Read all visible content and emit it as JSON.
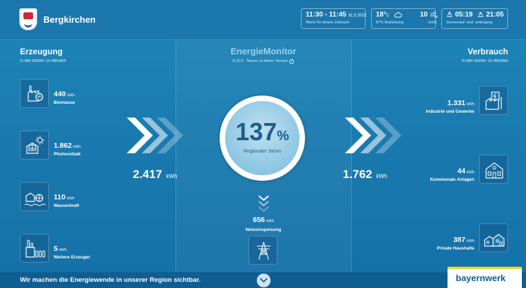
{
  "header": {
    "town": "Bergkirchen",
    "time_range": "11:30 - 11:45",
    "date": "31.5.2022",
    "time_note": "Werte für diesen Zeitraum",
    "temperature": "18°",
    "temp_unit": "C",
    "cloud_cover": "87% Bedeckung",
    "wind": "10",
    "wind_unit": "km/h",
    "sunrise": "05:19",
    "sunset": "21:05",
    "sun_note": "Sonnenauf- und -untergang"
  },
  "generation": {
    "title": "Erzeugung",
    "subtitle": "in den letzten 15 Minuten",
    "items": [
      {
        "value": "440",
        "unit": "kWh",
        "label": "Biomasse",
        "icon": "biomass-icon"
      },
      {
        "value": "1.862",
        "unit": "kWh",
        "label": "Photovoltaik",
        "icon": "solar-icon"
      },
      {
        "value": "110",
        "unit": "kWh",
        "label": "Wasserkraft",
        "icon": "hydro-icon"
      },
      {
        "value": "5",
        "unit": "kWh",
        "label": "Weitere Erzeuger",
        "icon": "factory-icon"
      }
    ],
    "total": "2.417",
    "total_unit": "kWh"
  },
  "monitor": {
    "title": "EnergieMonitor",
    "version": "8.10.0 · Neues zu dieser Version",
    "info_glyph": "i",
    "percent": "137",
    "percent_sign": "%",
    "percent_label": "Regionaler Strom",
    "feed_value": "656",
    "feed_unit": "kWh",
    "feed_label": "Netzeinspeisung"
  },
  "consumption": {
    "title": "Verbrauch",
    "subtitle": "in den letzten 15 Minuten",
    "items": [
      {
        "value": "1.331",
        "unit": "kWh",
        "label": "Industrie und Gewerbe",
        "icon": "industry-icon"
      },
      {
        "value": "44",
        "unit": "kWh",
        "label": "Kommunale Anlagen",
        "icon": "townhall-icon"
      },
      {
        "value": "387",
        "unit": "kWh",
        "label": "Private Haushalte",
        "icon": "houses-icon"
      }
    ],
    "total": "1.762",
    "total_unit": "kWh"
  },
  "footer": {
    "slogan": "Wir machen die Energiewende in unserer Region sichtbar.",
    "brand": "bayernwerk"
  },
  "colors": {
    "background": "#1a7bb0",
    "ring_text": "#1d5f8c",
    "brand_yellow": "#f2d200",
    "brand_blue": "#0d5e98"
  }
}
